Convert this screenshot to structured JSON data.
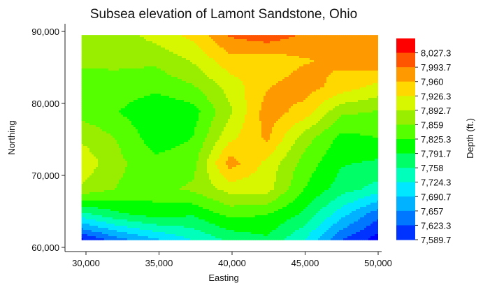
{
  "chart_data": {
    "type": "heatmap",
    "subtype": "filled-contour",
    "title": "Subsea elevation of Lamont Sandstone, Ohio",
    "xlabel": "Easting",
    "ylabel": "Northing",
    "colorbar_label": "Depth (ft.)",
    "xlim": [
      29000,
      50000
    ],
    "ylim": [
      60000,
      91000
    ],
    "x_ticks": [
      30000,
      35000,
      40000,
      45000,
      50000
    ],
    "x_tick_labels": [
      "30,000",
      "35,000",
      "40,000",
      "45,000",
      "50,000"
    ],
    "y_ticks": [
      60000,
      70000,
      80000,
      90000
    ],
    "y_tick_labels": [
      "60,000",
      "70,000",
      "80,000",
      "90,000"
    ],
    "data_extent": {
      "x": [
        29700,
        50000
      ],
      "y": [
        61000,
        89500
      ]
    },
    "grid": false,
    "contour_levels": [
      7573,
      7606.3,
      7639.7,
      7673,
      7706.3,
      7739.7,
      7773,
      7806.3,
      7839.7,
      7873,
      7906.3,
      7939.7,
      7973,
      8006.3,
      8040
    ],
    "colorbar_labels": [
      "8,027.3",
      "7,993.7",
      "7,960",
      "7,926.3",
      "7,892.7",
      "7,859",
      "7,825.3",
      "7,791.7",
      "7,758",
      "7,724.3",
      "7,690.7",
      "7,657",
      "7,623.3",
      "7,589.7"
    ],
    "colors": [
      "#0000ff",
      "#0033ff",
      "#0077ff",
      "#00b2ff",
      "#00e7ff",
      "#00ffbb",
      "#00ff66",
      "#00ff00",
      "#55ff00",
      "#99ee00",
      "#d6f700",
      "#ffd800",
      "#ff9900",
      "#ff5500",
      "#ff0000"
    ],
    "grid_x": [
      29700,
      32237.5,
      34775,
      37312.5,
      39850,
      42387.5,
      44925,
      47462.5,
      50000
    ],
    "grid_y": [
      61000,
      64562.5,
      68125,
      71687.5,
      75250,
      78812.5,
      82375,
      85937.5,
      89500
    ],
    "z": [
      [
        7600,
        7660,
        7700,
        7740,
        7780,
        7800,
        7740,
        7640,
        7590
      ],
      [
        7760,
        7800,
        7820,
        7810,
        7850,
        7840,
        7800,
        7720,
        7650
      ],
      [
        7900,
        7870,
        7860,
        7880,
        7920,
        7920,
        7840,
        7790,
        7760
      ],
      [
        7930,
        7880,
        7850,
        7860,
        7990,
        7930,
        7860,
        7810,
        7800
      ],
      [
        7900,
        7870,
        7820,
        7840,
        7930,
        7980,
        7890,
        7830,
        7840
      ],
      [
        7860,
        7840,
        7810,
        7825,
        7900,
        7990,
        7960,
        7880,
        7870
      ],
      [
        7840,
        7860,
        7850,
        7870,
        7920,
        7970,
        7990,
        7960,
        7930
      ],
      [
        7890,
        7880,
        7880,
        7910,
        7960,
        7950,
        7970,
        7980,
        8000
      ],
      [
        7880,
        7890,
        7920,
        7950,
        8010,
        8030,
        8000,
        7990,
        7990
      ]
    ]
  }
}
